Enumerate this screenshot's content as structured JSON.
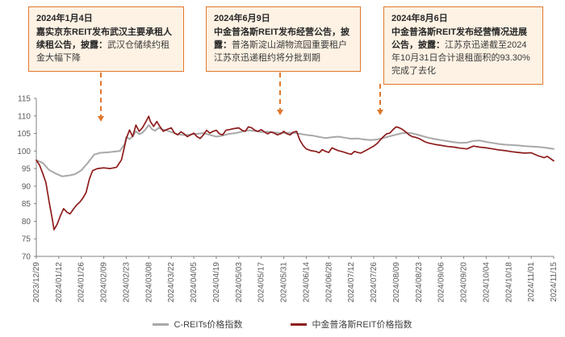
{
  "annotations": [
    {
      "date": "2024年1月4日",
      "bold": "嘉实京东REIT发布武汉主要承租人续租公告，披露：",
      "normal": "武汉仓储续约租金大幅下降"
    },
    {
      "date": "2024年6月9日",
      "bold": "中金普洛斯REIT发布经营公告，披露：",
      "normal": "普洛斯淀山湖物流园重要租户江苏京迅递租约将分批到期"
    },
    {
      "date": "2024年8月6日",
      "bold": "中金普洛斯REIT发布经营情况进展公告，披露：",
      "normal": "江苏京迅递截至2024年10月31日合计退租面积的93.30%完成了去化"
    }
  ],
  "colors": {
    "annotation_border": "#e0782e",
    "annotation_bg": "#fdf2e4",
    "arrow": "#e0782e",
    "creits_line": "#a8a8a8",
    "gds_line": "#8e1c1c",
    "axis": "#808080",
    "tick_text": "#595959"
  },
  "chart_data": {
    "type": "line",
    "title": "",
    "xlabel": "",
    "ylabel": "",
    "ylim": [
      70,
      115
    ],
    "ytick_step": 5,
    "grid": false,
    "legend_position": "bottom",
    "x_total_days": 322,
    "x_tick_interval_days": 14,
    "x_tick_labels": [
      "2023/12/29",
      "2024/01/12",
      "2024/01/26",
      "2024/02/09",
      "2024/02/23",
      "2024/03/08",
      "2024/03/22",
      "2024/04/05",
      "2024/04/19",
      "2024/05/03",
      "2024/05/17",
      "2024/05/31",
      "2024/06/14",
      "2024/06/28",
      "2024/07/12",
      "2024/07/26",
      "2024/08/09",
      "2024/08/23",
      "2024/09/06",
      "2024/09/20",
      "2024/10/04",
      "2024/10/18",
      "2024/11/01",
      "2024/11/15"
    ],
    "series": [
      {
        "name": "C-REITs价格指数",
        "color": "#a8a8a8",
        "points": [
          [
            0,
            97.4
          ],
          [
            4,
            96.6
          ],
          [
            8,
            94.6
          ],
          [
            12,
            93.6
          ],
          [
            16,
            92.8
          ],
          [
            20,
            93.0
          ],
          [
            24,
            93.4
          ],
          [
            28,
            94.5
          ],
          [
            32,
            96.6
          ],
          [
            36,
            99.0
          ],
          [
            40,
            99.5
          ],
          [
            46,
            99.7
          ],
          [
            52,
            100.0
          ],
          [
            55,
            102.0
          ],
          [
            56,
            104.0
          ],
          [
            58,
            103.4
          ],
          [
            60,
            104.2
          ],
          [
            62,
            105.6
          ],
          [
            64,
            104.8
          ],
          [
            66,
            105.2
          ],
          [
            68,
            106.2
          ],
          [
            70,
            107.4
          ],
          [
            72,
            106.2
          ],
          [
            74,
            105.8
          ],
          [
            76,
            106.6
          ],
          [
            78,
            106.2
          ],
          [
            80,
            106.0
          ],
          [
            84,
            105.4
          ],
          [
            88,
            104.8
          ],
          [
            92,
            104.5
          ],
          [
            96,
            104.7
          ],
          [
            100,
            104.9
          ],
          [
            104,
            105.1
          ],
          [
            108,
            104.6
          ],
          [
            112,
            104.1
          ],
          [
            116,
            104.4
          ],
          [
            120,
            104.9
          ],
          [
            124,
            105.1
          ],
          [
            128,
            105.5
          ],
          [
            132,
            105.9
          ],
          [
            136,
            105.7
          ],
          [
            140,
            105.4
          ],
          [
            144,
            105.5
          ],
          [
            148,
            105.3
          ],
          [
            152,
            105.1
          ],
          [
            156,
            105.2
          ],
          [
            160,
            105.2
          ],
          [
            164,
            104.9
          ],
          [
            168,
            104.6
          ],
          [
            172,
            104.4
          ],
          [
            176,
            104.0
          ],
          [
            180,
            103.7
          ],
          [
            184,
            103.9
          ],
          [
            188,
            104.1
          ],
          [
            192,
            103.8
          ],
          [
            196,
            103.5
          ],
          [
            200,
            103.6
          ],
          [
            204,
            103.3
          ],
          [
            208,
            103.1
          ],
          [
            212,
            103.3
          ],
          [
            216,
            103.7
          ],
          [
            220,
            104.2
          ],
          [
            224,
            104.7
          ],
          [
            228,
            105.1
          ],
          [
            232,
            105.2
          ],
          [
            236,
            104.8
          ],
          [
            240,
            104.3
          ],
          [
            244,
            103.8
          ],
          [
            248,
            103.4
          ],
          [
            252,
            103.1
          ],
          [
            256,
            102.8
          ],
          [
            260,
            102.5
          ],
          [
            264,
            102.3
          ],
          [
            268,
            102.4
          ],
          [
            272,
            102.9
          ],
          [
            276,
            103.0
          ],
          [
            280,
            102.6
          ],
          [
            284,
            102.3
          ],
          [
            288,
            102.0
          ],
          [
            292,
            101.8
          ],
          [
            296,
            101.7
          ],
          [
            300,
            101.6
          ],
          [
            304,
            101.4
          ],
          [
            308,
            101.3
          ],
          [
            312,
            101.2
          ],
          [
            316,
            101.0
          ],
          [
            322,
            100.6
          ]
        ]
      },
      {
        "name": "中金普洛斯REIT价格指数",
        "color": "#8e1c1c",
        "points": [
          [
            0,
            97.4
          ],
          [
            2,
            96.0
          ],
          [
            4,
            93.6
          ],
          [
            6,
            91.0
          ],
          [
            8,
            85.5
          ],
          [
            10,
            80.5
          ],
          [
            11,
            77.6
          ],
          [
            13,
            79.2
          ],
          [
            15,
            81.6
          ],
          [
            17,
            83.6
          ],
          [
            19,
            82.6
          ],
          [
            21,
            82.1
          ],
          [
            23,
            83.4
          ],
          [
            25,
            84.6
          ],
          [
            27,
            85.4
          ],
          [
            29,
            86.6
          ],
          [
            31,
            88.2
          ],
          [
            33,
            92.0
          ],
          [
            35,
            94.4
          ],
          [
            38,
            95.0
          ],
          [
            42,
            95.2
          ],
          [
            46,
            95.0
          ],
          [
            50,
            95.4
          ],
          [
            53,
            97.5
          ],
          [
            55,
            101.5
          ],
          [
            56,
            103.6
          ],
          [
            58,
            106.0
          ],
          [
            60,
            104.1
          ],
          [
            62,
            107.4
          ],
          [
            64,
            105.6
          ],
          [
            66,
            106.6
          ],
          [
            68,
            108.2
          ],
          [
            70,
            109.9
          ],
          [
            71,
            108.4
          ],
          [
            73,
            107.0
          ],
          [
            75,
            108.4
          ],
          [
            77,
            106.9
          ],
          [
            79,
            105.6
          ],
          [
            81,
            106.1
          ],
          [
            84,
            106.6
          ],
          [
            86,
            105.1
          ],
          [
            88,
            104.6
          ],
          [
            90,
            105.5
          ],
          [
            92,
            104.9
          ],
          [
            94,
            104.1
          ],
          [
            96,
            104.6
          ],
          [
            98,
            105.1
          ],
          [
            100,
            104.1
          ],
          [
            102,
            103.6
          ],
          [
            104,
            104.6
          ],
          [
            106,
            105.9
          ],
          [
            108,
            105.1
          ],
          [
            110,
            105.6
          ],
          [
            112,
            105.9
          ],
          [
            114,
            104.9
          ],
          [
            116,
            104.6
          ],
          [
            118,
            105.9
          ],
          [
            120,
            106.1
          ],
          [
            123,
            106.4
          ],
          [
            126,
            106.6
          ],
          [
            128,
            105.9
          ],
          [
            130,
            105.6
          ],
          [
            132,
            106.9
          ],
          [
            134,
            106.6
          ],
          [
            136,
            105.9
          ],
          [
            138,
            105.6
          ],
          [
            140,
            106.1
          ],
          [
            142,
            105.4
          ],
          [
            144,
            104.9
          ],
          [
            146,
            105.4
          ],
          [
            148,
            105.1
          ],
          [
            150,
            104.6
          ],
          [
            152,
            104.9
          ],
          [
            154,
            105.6
          ],
          [
            156,
            104.9
          ],
          [
            158,
            104.6
          ],
          [
            160,
            105.4
          ],
          [
            162,
            105.6
          ],
          [
            164,
            103.1
          ],
          [
            166,
            101.6
          ],
          [
            168,
            100.6
          ],
          [
            171,
            100.1
          ],
          [
            174,
            99.9
          ],
          [
            176,
            99.5
          ],
          [
            178,
            100.4
          ],
          [
            180,
            99.9
          ],
          [
            182,
            99.6
          ],
          [
            184,
            100.9
          ],
          [
            186,
            100.5
          ],
          [
            188,
            100.1
          ],
          [
            190,
            99.9
          ],
          [
            192,
            99.6
          ],
          [
            194,
            99.3
          ],
          [
            196,
            99.1
          ],
          [
            198,
            99.9
          ],
          [
            200,
            99.6
          ],
          [
            202,
            99.4
          ],
          [
            204,
            99.9
          ],
          [
            206,
            100.4
          ],
          [
            208,
            100.9
          ],
          [
            210,
            101.4
          ],
          [
            212,
            102.1
          ],
          [
            214,
            103.1
          ],
          [
            216,
            104.1
          ],
          [
            218,
            104.9
          ],
          [
            220,
            105.1
          ],
          [
            222,
            106.1
          ],
          [
            224,
            106.9
          ],
          [
            226,
            106.6
          ],
          [
            228,
            106.1
          ],
          [
            230,
            105.4
          ],
          [
            232,
            104.6
          ],
          [
            234,
            104.1
          ],
          [
            236,
            103.9
          ],
          [
            238,
            103.6
          ],
          [
            240,
            103.1
          ],
          [
            242,
            102.6
          ],
          [
            244,
            102.3
          ],
          [
            246,
            102.1
          ],
          [
            248,
            101.9
          ],
          [
            252,
            101.6
          ],
          [
            256,
            101.3
          ],
          [
            260,
            101.1
          ],
          [
            264,
            100.8
          ],
          [
            268,
            100.6
          ],
          [
            272,
            101.4
          ],
          [
            276,
            101.1
          ],
          [
            280,
            100.9
          ],
          [
            284,
            100.6
          ],
          [
            288,
            100.3
          ],
          [
            292,
            100.1
          ],
          [
            296,
            99.8
          ],
          [
            300,
            99.6
          ],
          [
            304,
            99.4
          ],
          [
            308,
            99.5
          ],
          [
            312,
            98.7
          ],
          [
            316,
            98.1
          ],
          [
            318,
            98.5
          ],
          [
            322,
            97.2
          ]
        ]
      }
    ]
  }
}
